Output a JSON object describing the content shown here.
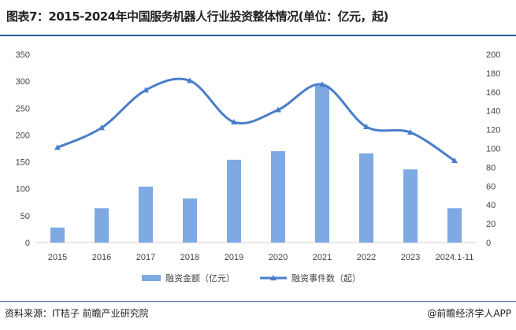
{
  "title": "图表7：2015-2024年中国服务机器人行业投资整体情况(单位：亿元，起)",
  "source": "资料来源：IT桔子 前瞻产业研究院",
  "brand": "@前瞻经济学人APP",
  "colors": {
    "bar": "#7fa9e3",
    "line": "#4a7ec9"
  },
  "chart_data": {
    "type": "bar+line",
    "categories": [
      "2015",
      "2016",
      "2017",
      "2018",
      "2019",
      "2020",
      "2021",
      "2022",
      "2023",
      "2024.1-11"
    ],
    "series": [
      {
        "name": "融资金额（亿元）",
        "type": "bar",
        "axis": "left",
        "values": [
          28,
          64,
          104,
          82,
          154,
          170,
          292,
          166,
          136,
          64
        ]
      },
      {
        "name": "融资事件数（起）",
        "type": "line",
        "axis": "right",
        "values": [
          101,
          122,
          162,
          172,
          128,
          141,
          168,
          123,
          117,
          87
        ]
      }
    ],
    "left_ylim": [
      0,
      350
    ],
    "left_ticks": [
      0,
      50,
      100,
      150,
      200,
      250,
      300,
      350
    ],
    "right_ylim": [
      0,
      200
    ],
    "right_ticks": [
      0,
      20,
      40,
      60,
      80,
      100,
      120,
      140,
      160,
      180,
      200
    ],
    "legend": "bottom"
  }
}
